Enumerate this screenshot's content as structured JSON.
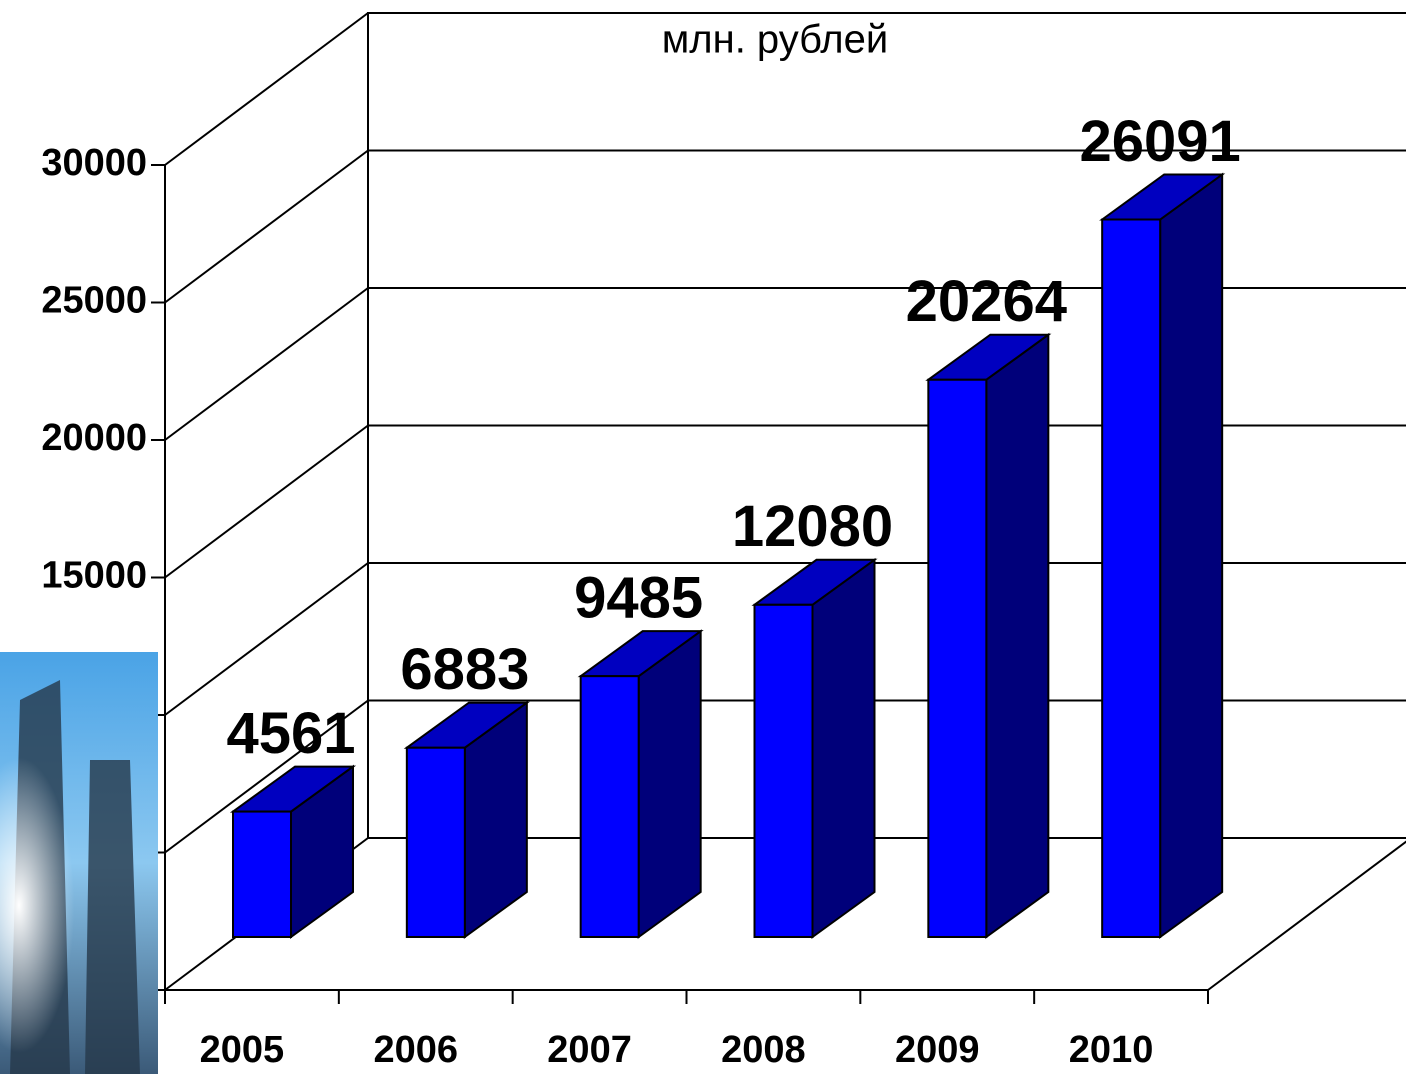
{
  "chart_data": {
    "type": "bar",
    "title": "млн. рублей",
    "categories": [
      "2005",
      "2006",
      "2007",
      "2008",
      "2009",
      "2010"
    ],
    "values": [
      4561,
      6883,
      9485,
      12080,
      20264,
      26091
    ],
    "color": "#0000ff",
    "ylim": [
      0,
      30000
    ],
    "yticks": [
      0,
      5000,
      10000,
      15000,
      20000,
      25000,
      30000
    ],
    "grid": true
  }
}
